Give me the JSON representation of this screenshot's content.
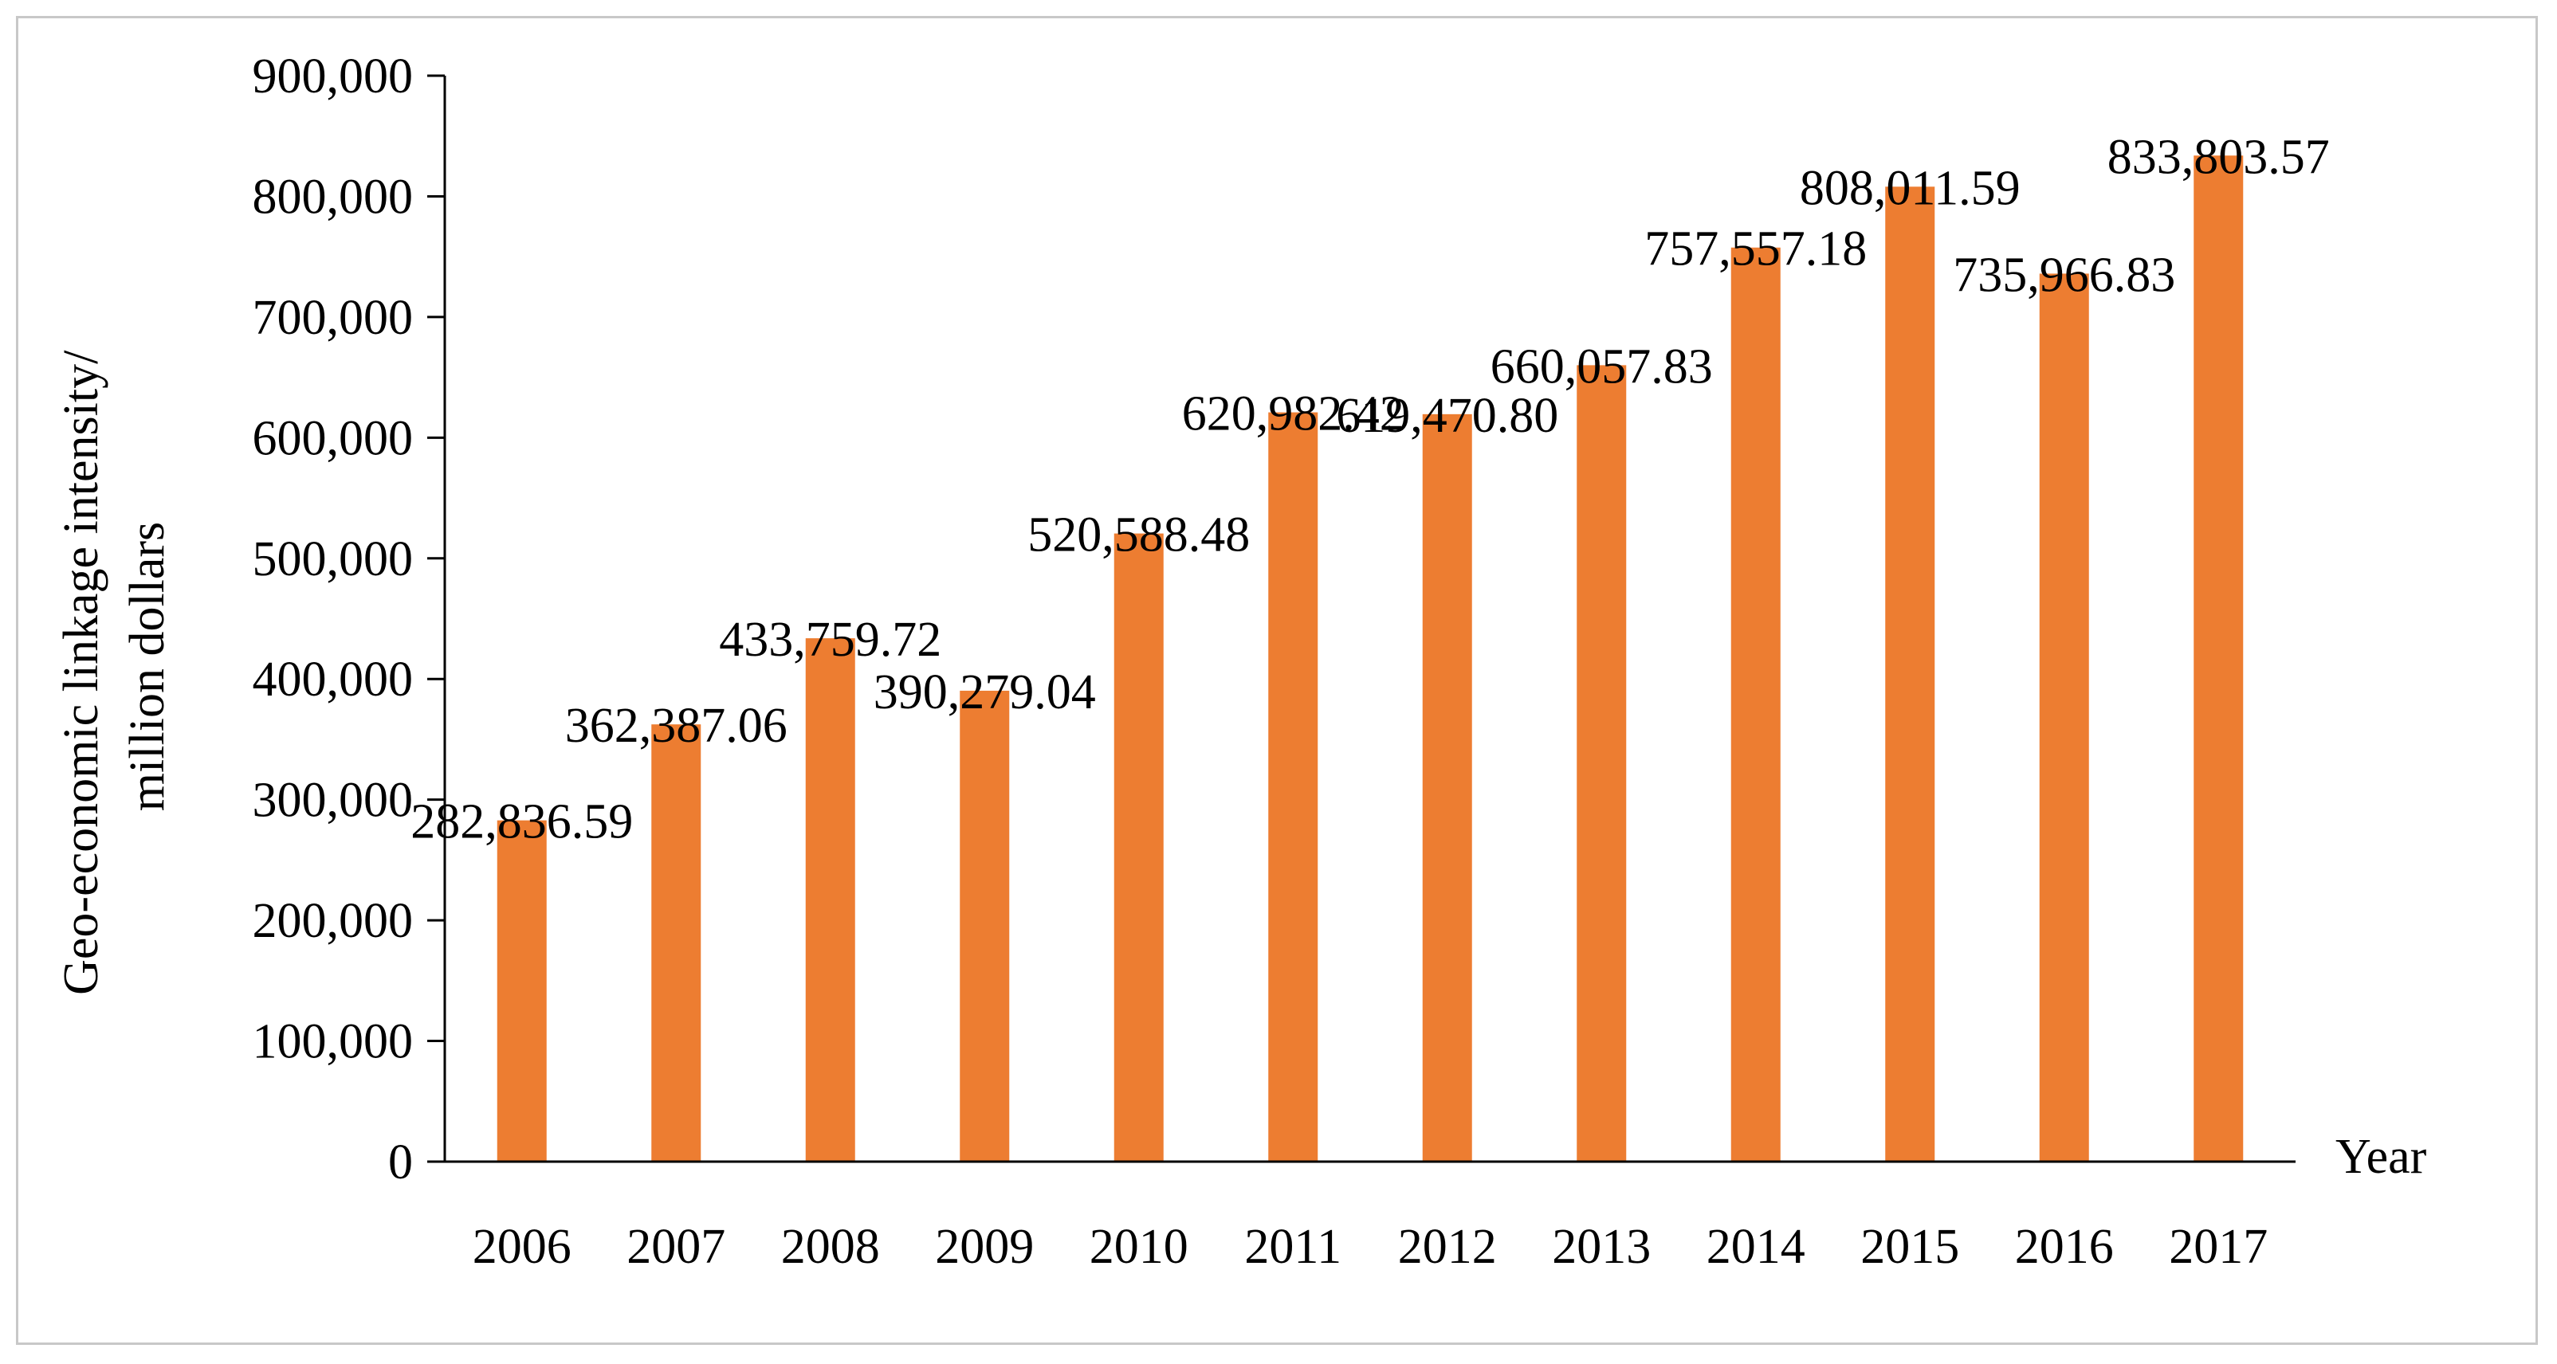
{
  "chart_data": {
    "type": "bar",
    "title": "",
    "xlabel": "Year",
    "ylabel_lines": [
      "Geo-economic  linkage intensity/",
      "million dollars"
    ],
    "categories": [
      "2006",
      "2007",
      "2008",
      "2009",
      "2010",
      "2011",
      "2012",
      "2013",
      "2014",
      "2015",
      "2016",
      "2017"
    ],
    "values": [
      282836.59,
      362387.06,
      433759.72,
      390279.04,
      520588.48,
      620982.42,
      619470.8,
      660057.83,
      757557.18,
      808011.59,
      735966.83,
      833803.57
    ],
    "value_labels": [
      "282,836.59",
      "362,387.06",
      "433,759.72",
      "390,279.04",
      "520,588.48",
      "620,982.42",
      "619,470.80",
      "660,057.83",
      "757,557.18",
      "808,011.59",
      "735,966.83",
      "833,803.57"
    ],
    "ylim": [
      0,
      900000
    ],
    "yticks": [
      0,
      100000,
      200000,
      300000,
      400000,
      500000,
      600000,
      700000,
      800000,
      900000
    ],
    "ytick_labels": [
      "0",
      "100,000",
      "200,000",
      "300,000",
      "400,000",
      "500,000",
      "600,000",
      "700,000",
      "800,000",
      "900,000"
    ],
    "bar_color": "#ED7D31",
    "axis_color": "#000000",
    "grid": false,
    "legend": "none"
  }
}
